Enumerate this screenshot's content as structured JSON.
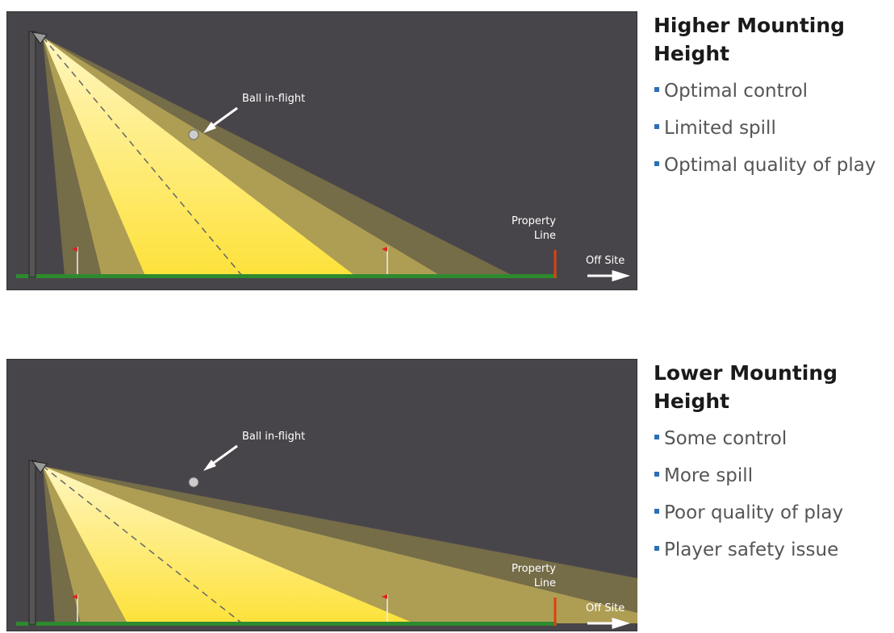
{
  "panels": [
    {
      "diagram": {
        "ball_label": "Ball in-flight",
        "property_label": [
          "Property",
          "Line"
        ],
        "off_site_label": "Off Site"
      },
      "heading": "Higher Mounting Height",
      "bullets": [
        "Optimal control",
        "Limited spill",
        "Optimal quality of play"
      ]
    },
    {
      "diagram": {
        "ball_label": "Ball in-flight",
        "property_label": [
          "Property",
          "Line"
        ],
        "off_site_label": "Off Site"
      },
      "heading": "Lower Mounting Height",
      "bullets": [
        "Some control",
        "More spill",
        "Poor quality of play",
        "Player safety issue"
      ]
    }
  ]
}
